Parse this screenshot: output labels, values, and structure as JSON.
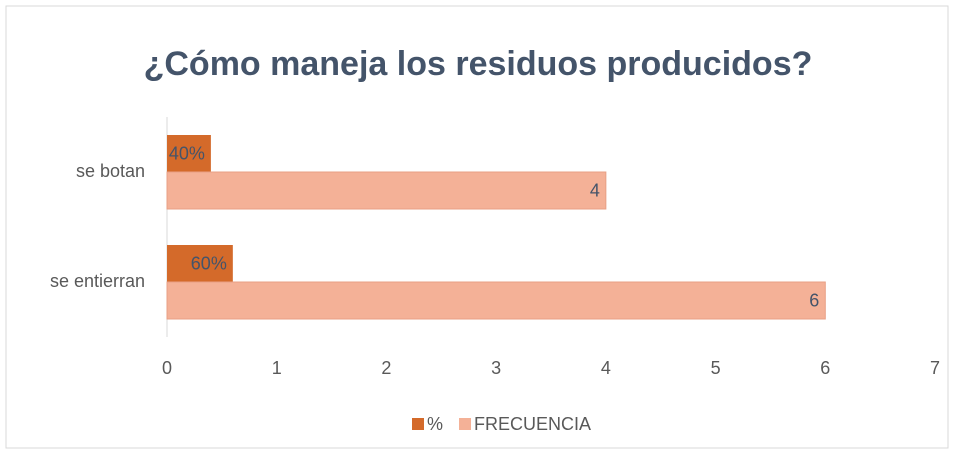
{
  "chart_data": {
    "type": "hbar",
    "title": "¿Cómo maneja los residuos producidos?",
    "categories": [
      "se botan",
      "se entierran"
    ],
    "series": [
      {
        "name": "%",
        "color": "#d46a2a",
        "values": [
          0.4,
          0.6
        ],
        "value_labels": [
          "40%",
          "60%"
        ]
      },
      {
        "name": "FRECUENCIA",
        "color": "#f4b197",
        "values": [
          4,
          6
        ]
      }
    ],
    "xlim": [
      0,
      7
    ],
    "xticks": [
      0,
      1,
      2,
      3,
      4,
      5,
      6,
      7
    ],
    "legend": "bottom",
    "grid": false
  }
}
